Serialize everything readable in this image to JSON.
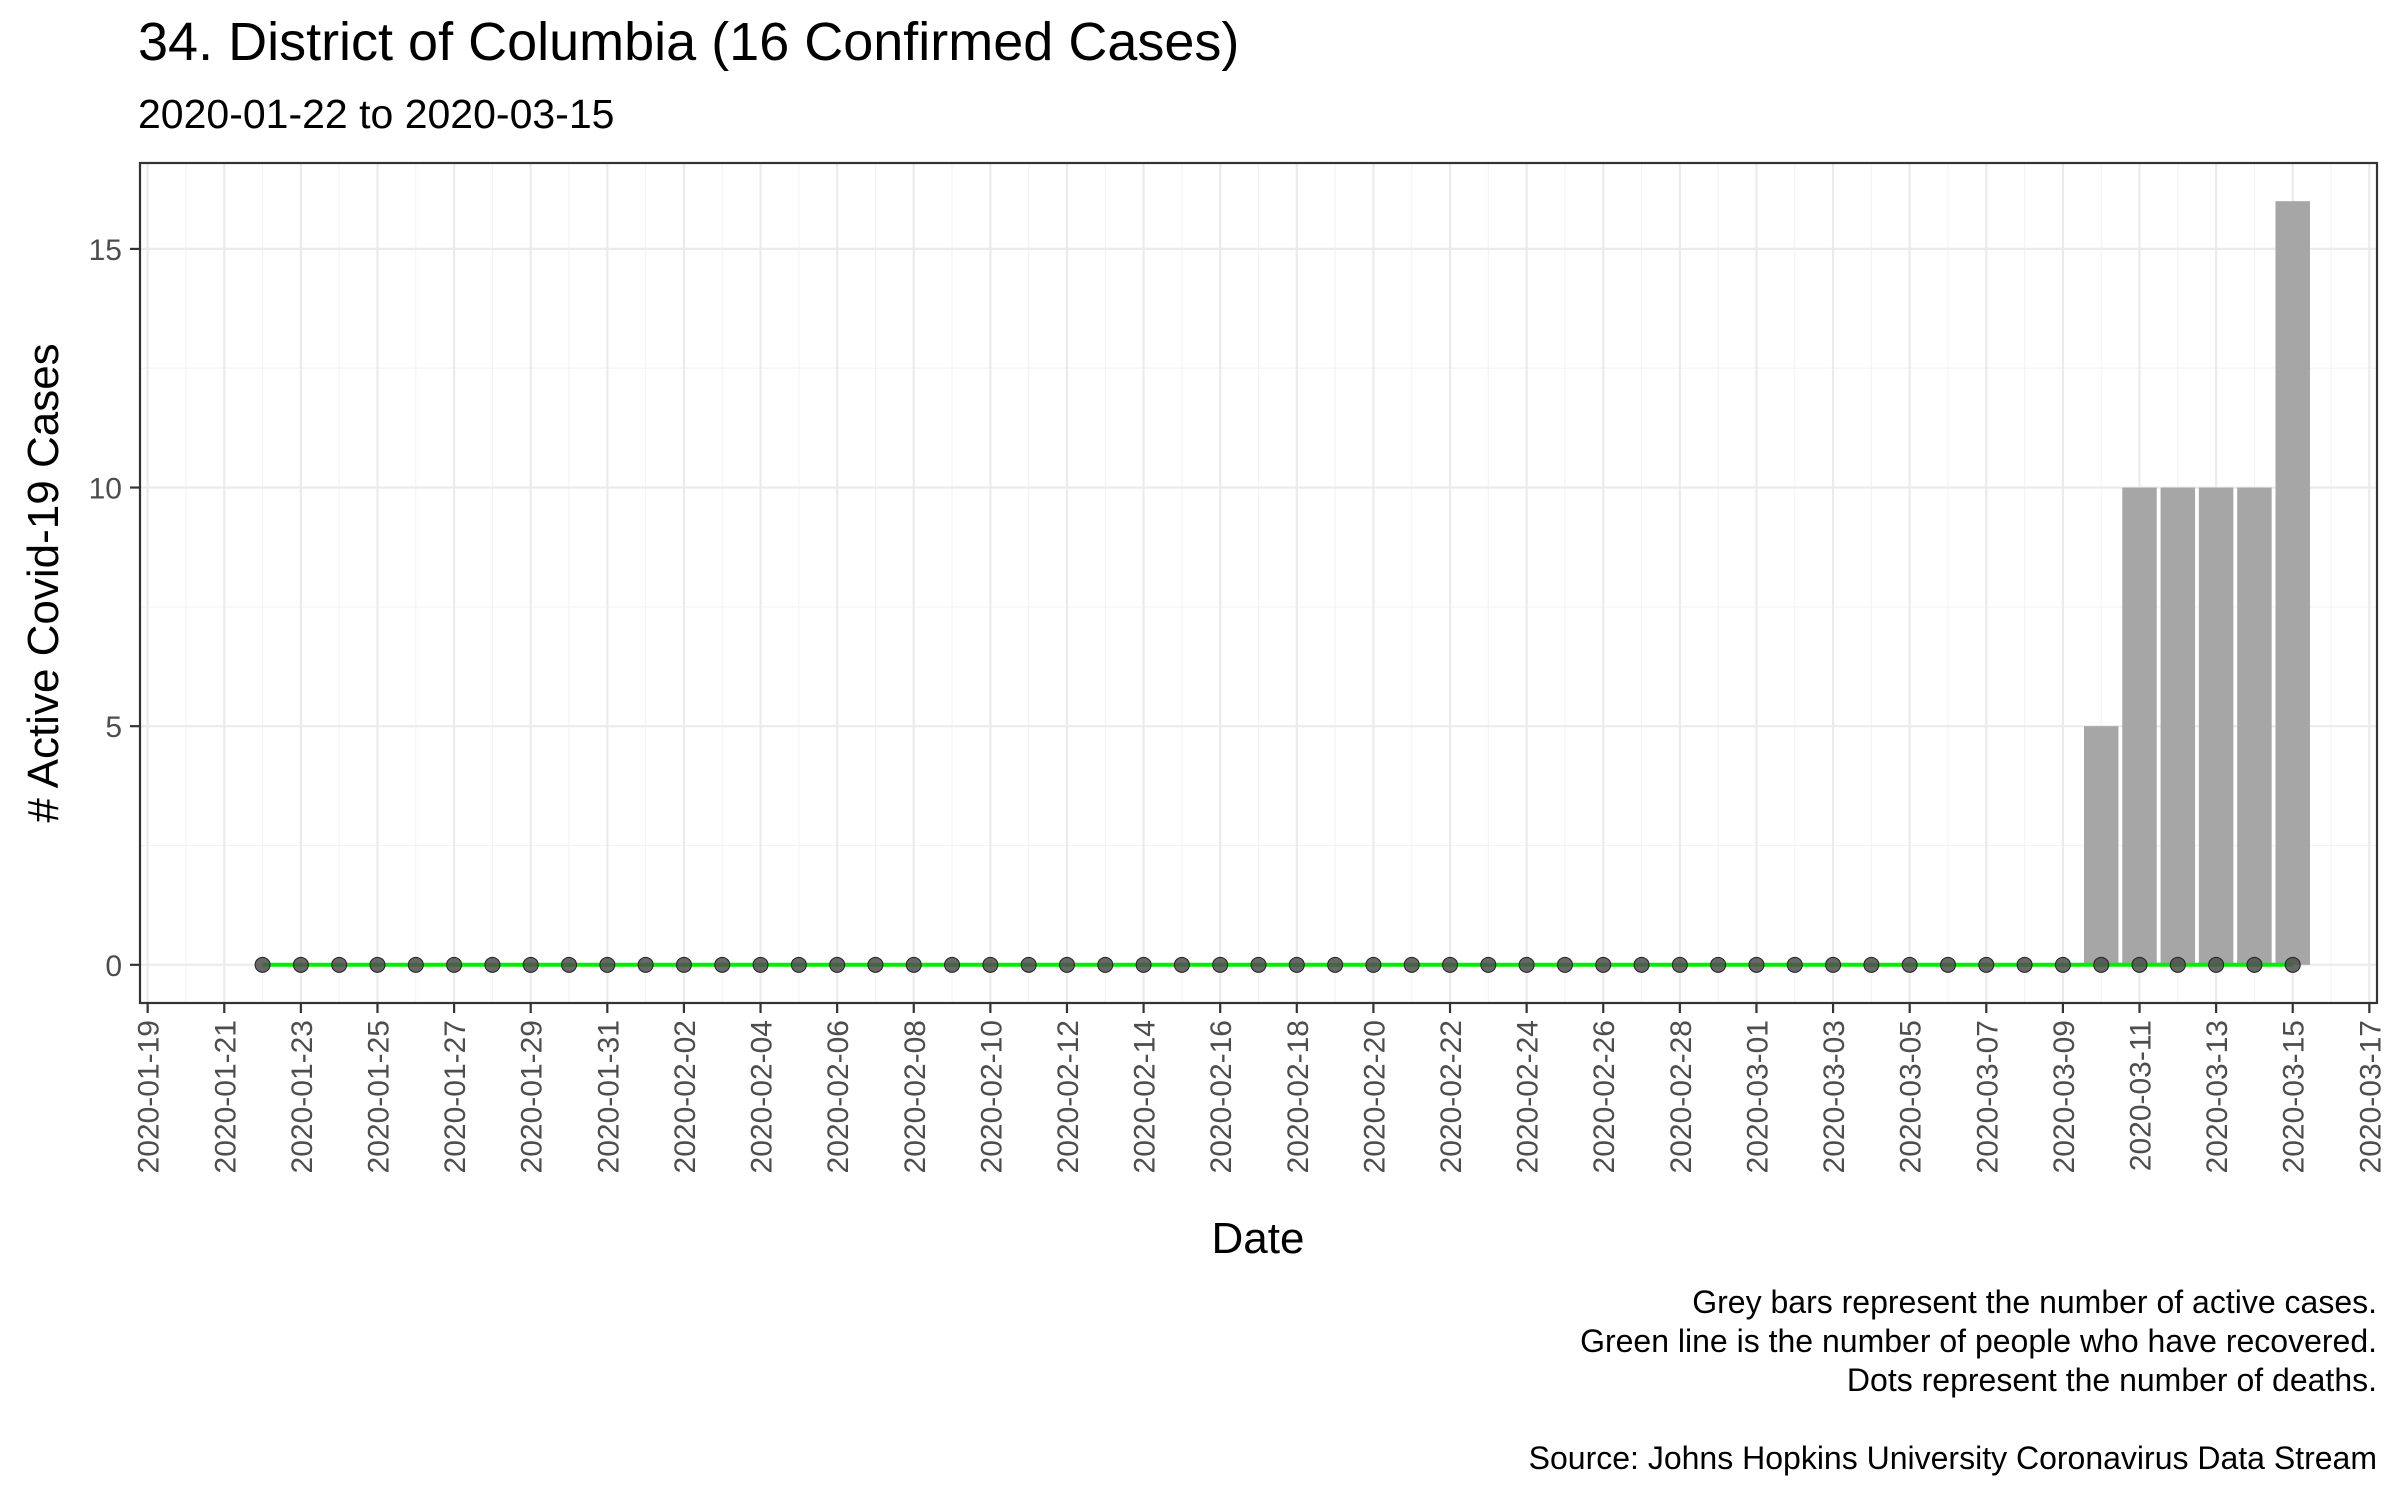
{
  "chart_data": {
    "type": "bar",
    "title": "34. District of Columbia (16 Confirmed Cases)",
    "subtitle": "2020-01-22 to 2020-03-15",
    "xlabel": "Date",
    "ylabel": "# Active Covid-19 Cases",
    "xlim": [
      "2020-01-19",
      "2020-03-17"
    ],
    "ylim": [
      -0.8,
      16.8
    ],
    "y_ticks": [
      0,
      5,
      10,
      15
    ],
    "x_ticks": [
      "2020-01-19",
      "2020-01-21",
      "2020-01-23",
      "2020-01-25",
      "2020-01-27",
      "2020-01-29",
      "2020-01-31",
      "2020-02-02",
      "2020-02-04",
      "2020-02-06",
      "2020-02-08",
      "2020-02-10",
      "2020-02-12",
      "2020-02-14",
      "2020-02-16",
      "2020-02-18",
      "2020-02-20",
      "2020-02-22",
      "2020-02-24",
      "2020-02-26",
      "2020-02-28",
      "2020-03-01",
      "2020-03-03",
      "2020-03-05",
      "2020-03-07",
      "2020-03-09",
      "2020-03-11",
      "2020-03-13",
      "2020-03-15",
      "2020-03-17"
    ],
    "grid": true,
    "colors": {
      "bars": "#a6a6a6",
      "recovered_line": "#00ee00",
      "death_dots": "#4d4d4d"
    },
    "start_date": "2020-01-22",
    "series": [
      {
        "mark": "bar",
        "values": [
          0,
          0,
          0,
          0,
          0,
          0,
          0,
          0,
          0,
          0,
          0,
          0,
          0,
          0,
          0,
          0,
          0,
          0,
          0,
          0,
          0,
          0,
          0,
          0,
          0,
          0,
          0,
          0,
          0,
          0,
          0,
          0,
          0,
          0,
          0,
          0,
          0,
          0,
          0,
          0,
          0,
          0,
          0,
          0,
          0,
          0,
          0,
          0,
          5,
          10,
          10,
          10,
          10,
          16
        ]
      },
      {
        "mark": "line",
        "values": [
          0,
          0,
          0,
          0,
          0,
          0,
          0,
          0,
          0,
          0,
          0,
          0,
          0,
          0,
          0,
          0,
          0,
          0,
          0,
          0,
          0,
          0,
          0,
          0,
          0,
          0,
          0,
          0,
          0,
          0,
          0,
          0,
          0,
          0,
          0,
          0,
          0,
          0,
          0,
          0,
          0,
          0,
          0,
          0,
          0,
          0,
          0,
          0,
          0,
          0,
          0,
          0,
          0,
          0
        ]
      },
      {
        "mark": "dots",
        "values": [
          0,
          0,
          0,
          0,
          0,
          0,
          0,
          0,
          0,
          0,
          0,
          0,
          0,
          0,
          0,
          0,
          0,
          0,
          0,
          0,
          0,
          0,
          0,
          0,
          0,
          0,
          0,
          0,
          0,
          0,
          0,
          0,
          0,
          0,
          0,
          0,
          0,
          0,
          0,
          0,
          0,
          0,
          0,
          0,
          0,
          0,
          0,
          0,
          0,
          0,
          0,
          0,
          0,
          0
        ]
      }
    ],
    "caption_lines": [
      "Grey bars represent the number of active cases.",
      "Green line is the number of people who have recovered.",
      "Dots represent the number of deaths."
    ],
    "source": "Source: Johns Hopkins University Coronavirus Data Stream"
  }
}
